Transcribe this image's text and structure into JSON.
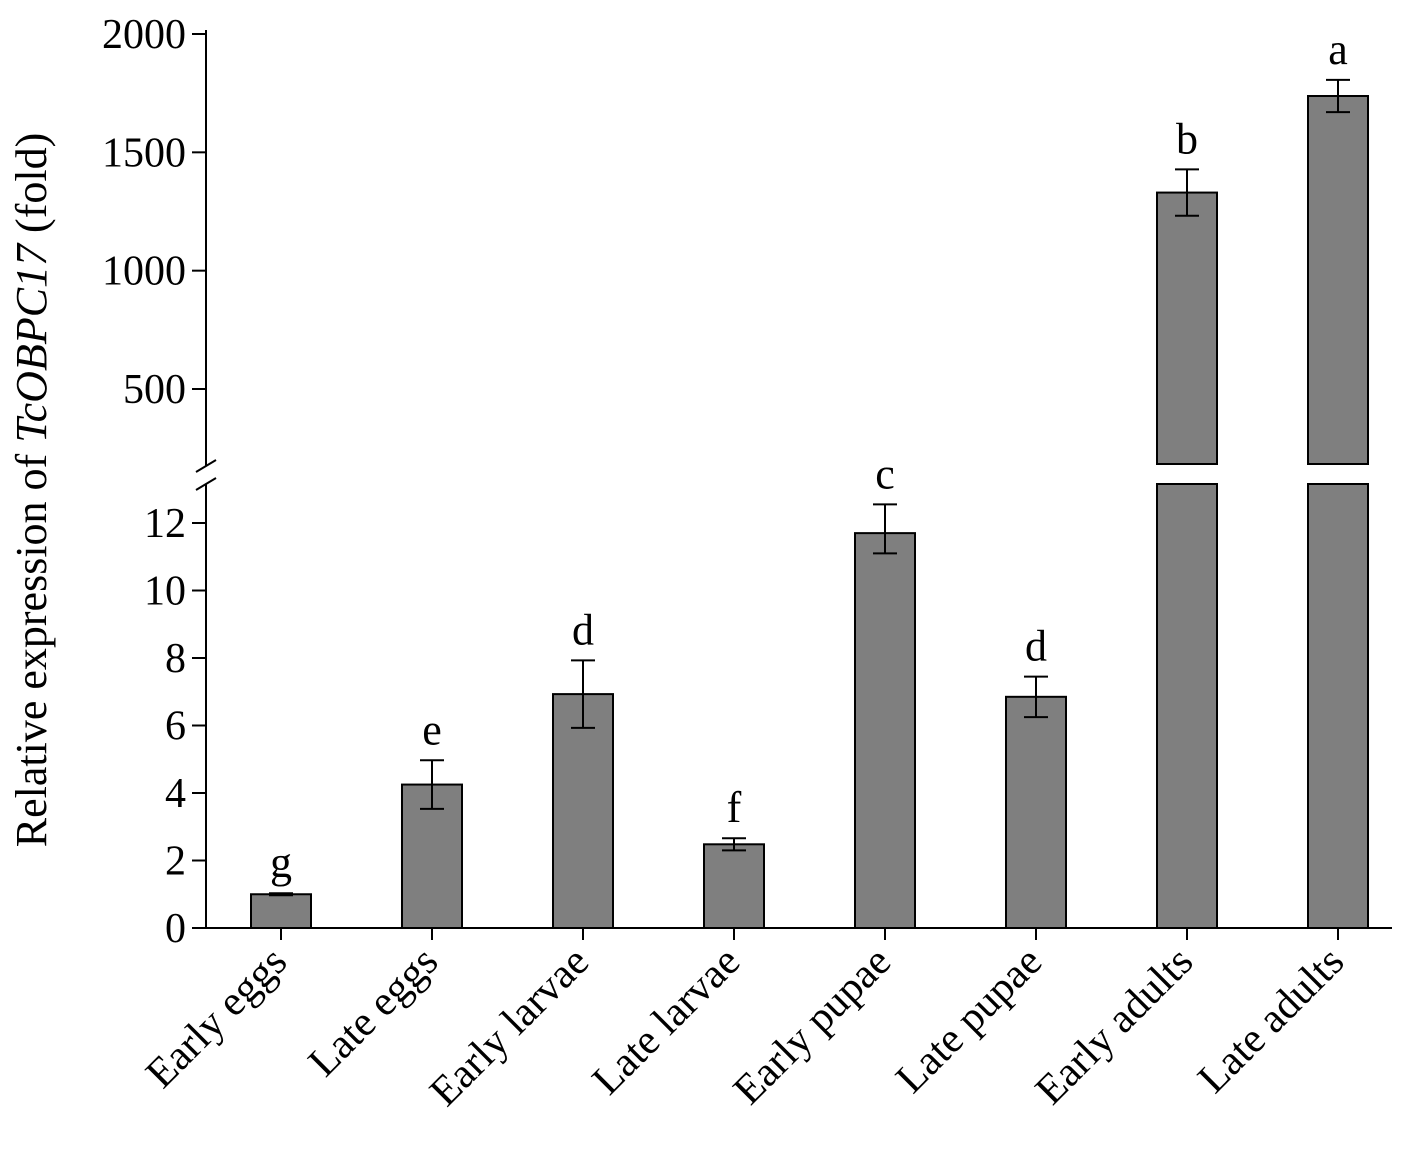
{
  "chart_data": {
    "type": "bar",
    "categories": [
      "Early eggs",
      "Late eggs",
      "Early larvae",
      "Late larvae",
      "Early pupae",
      "Late pupae",
      "Early adults",
      "Late adults"
    ],
    "values": [
      1.0,
      4.25,
      6.93,
      2.48,
      11.7,
      6.85,
      1330,
      1738
    ],
    "errors": [
      0.03,
      0.72,
      1.0,
      0.18,
      0.6,
      0.6,
      98,
      68
    ],
    "significance": [
      "g",
      "e",
      "d",
      "f",
      "c",
      "d",
      "b",
      "a"
    ],
    "ylabel_prefix": "Relative expression of ",
    "ylabel_gene": "TcOBPC17",
    "ylabel_suffix": " (fold)",
    "xlabel": "",
    "broken_axis": true,
    "lower_segment": {
      "ylim": [
        0,
        12
      ],
      "ticks": [
        "0",
        "2",
        "4",
        "6",
        "8",
        "10",
        "12"
      ]
    },
    "upper_segment": {
      "ylim": [
        500,
        2000
      ],
      "ticks": [
        "500",
        "1000",
        "1500",
        "2000"
      ]
    },
    "bar_color": "#7f7f7f",
    "grid": false,
    "legend": "none"
  }
}
